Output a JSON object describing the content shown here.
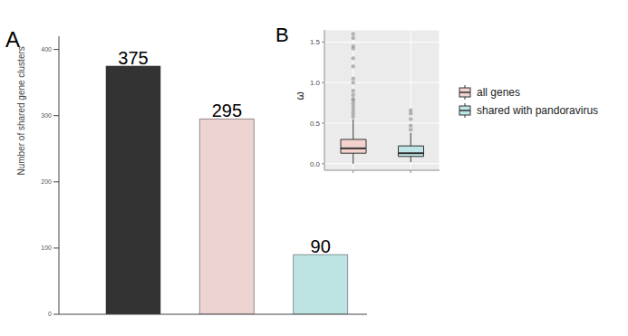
{
  "chart_data": [
    {
      "type": "bar",
      "title": "A",
      "y_label": "Number of shared gene clusters",
      "categories": [
        null,
        null,
        null
      ],
      "values": [
        375,
        295,
        90
      ],
      "colors": [
        "#333333",
        "#EDD3D1",
        "#BDE3E3"
      ],
      "ylim": [
        0,
        420
      ],
      "yticks": [
        0,
        100,
        200,
        300,
        400
      ],
      "data_labels": true,
      "tick_labels": "y"
    },
    {
      "type": "box",
      "title": "B",
      "y_label": "ω",
      "series": [
        {
          "name": "all genes",
          "color": "#F4D3CF",
          "min": 0.0,
          "q1": 0.13,
          "median": 0.19,
          "q3": 0.3,
          "max": 0.55,
          "outliers": [
            0.58,
            0.62,
            0.66,
            0.7,
            0.74,
            0.78,
            0.8,
            0.85,
            0.9,
            1.0,
            1.05,
            1.2,
            1.3,
            1.42,
            1.45,
            1.55,
            1.6
          ]
        },
        {
          "name": "shared with pandoravirus",
          "color": "#BFE6E6",
          "min": 0.02,
          "q1": 0.09,
          "median": 0.13,
          "q3": 0.22,
          "max": 0.38,
          "outliers": [
            0.42,
            0.47,
            0.55,
            0.62,
            0.66
          ]
        }
      ],
      "ylim": [
        -0.08,
        1.65
      ],
      "yticks": [
        {
          "value": 0,
          "label": "0.0"
        },
        {
          "value": 0.5,
          "label": "0.5"
        },
        {
          "value": 1,
          "label": "1.0"
        },
        {
          "value": 1.5,
          "label": "1.5"
        }
      ],
      "grid": true,
      "legend": "right",
      "tick_labels": "y"
    }
  ]
}
